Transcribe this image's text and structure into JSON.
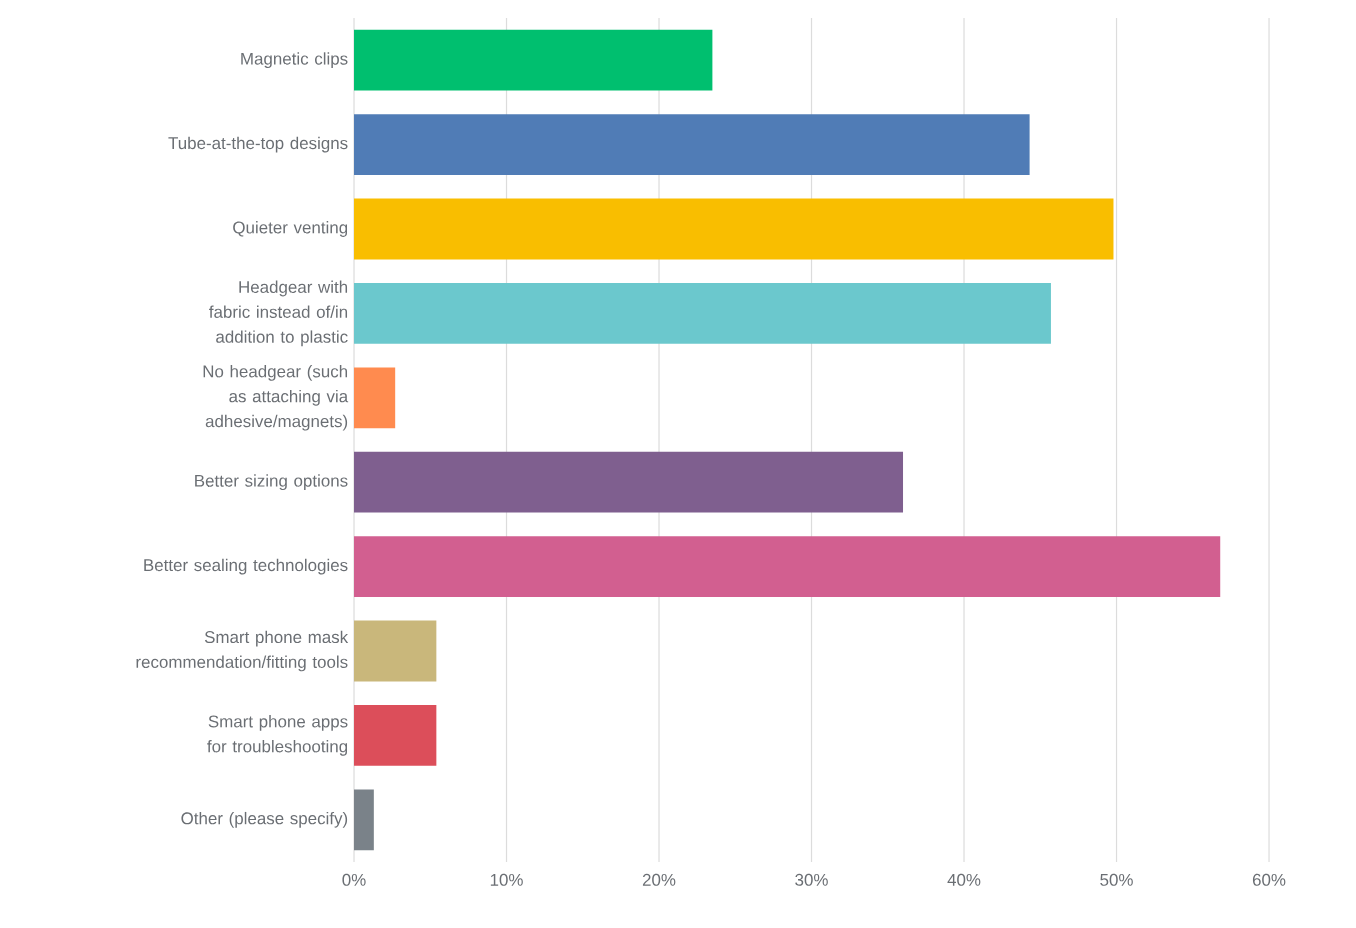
{
  "chart_data": {
    "type": "bar",
    "orientation": "horizontal",
    "categories": [
      "Magnetic clips",
      "Tube-at-the-top designs",
      "Quieter venting",
      "Headgear with fabric instead of/in addition to plastic",
      "No headgear (such as attaching via adhesive/magnets)",
      "Better sizing options",
      "Better sealing technologies",
      "Smart phone mask recommendation/fitting tools",
      "Smart phone apps for troubleshooting",
      "Other (please specify)"
    ],
    "values": [
      23.5,
      44.3,
      49.8,
      45.7,
      2.7,
      36.0,
      56.8,
      5.4,
      5.4,
      1.3
    ],
    "colors": [
      "#00bf6f",
      "#507cb6",
      "#f9be00",
      "#6bc8cd",
      "#ff8b4f",
      "#7f5f8f",
      "#d25f90",
      "#c9b77b",
      "#dc4e5a",
      "#7a8289"
    ],
    "xlim": [
      0,
      60
    ],
    "xticks": [
      {
        "value": 0,
        "label": "0%"
      },
      {
        "value": 10,
        "label": "10%"
      },
      {
        "value": 20,
        "label": "20%"
      },
      {
        "value": 30,
        "label": "30%"
      },
      {
        "value": 40,
        "label": "40%"
      },
      {
        "value": 50,
        "label": "50%"
      },
      {
        "value": 60,
        "label": "60%"
      }
    ],
    "grid": "x"
  }
}
